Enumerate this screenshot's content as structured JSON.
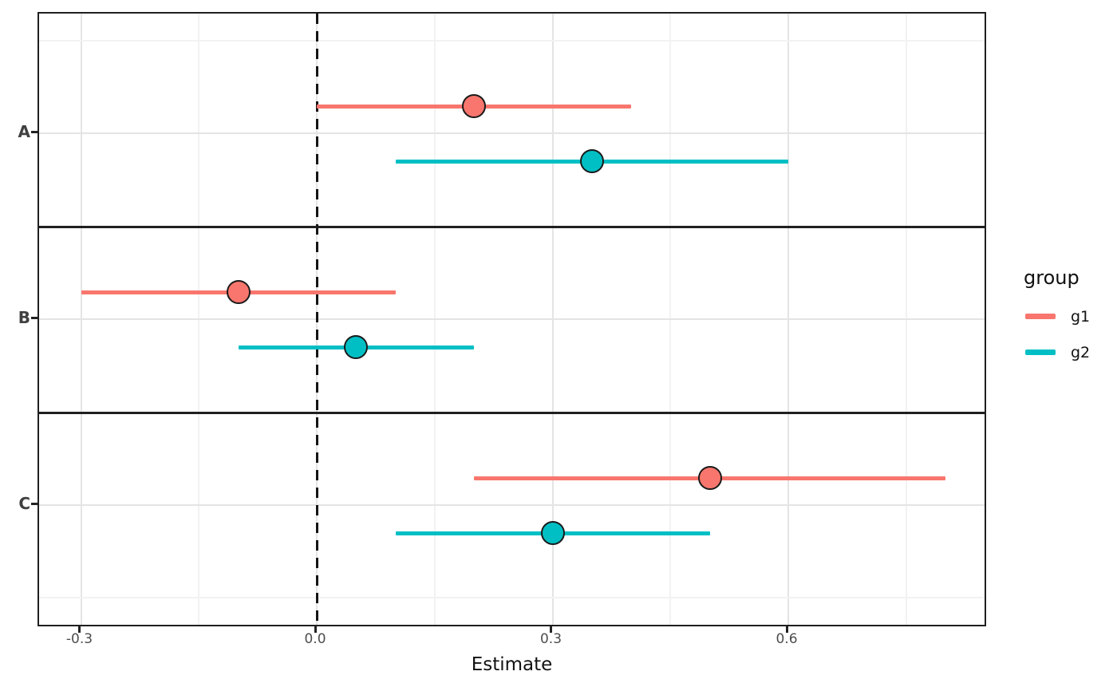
{
  "chart_data": {
    "type": "pointrange_forest",
    "title": "",
    "xlabel": "Estimate",
    "x_ticks": [
      -0.3,
      0.0,
      0.3,
      0.6
    ],
    "x_tick_labels": [
      "-0.3",
      "0.0",
      "0.3",
      "0.6"
    ],
    "x_minor_ticks": [
      -0.15,
      0.15,
      0.45,
      0.75
    ],
    "xlim": [
      -0.353,
      0.854
    ],
    "grid": "on",
    "facets": [
      "A",
      "B",
      "C"
    ],
    "reference_line": {
      "x": 0.0,
      "style": "dashed",
      "color": "#141414"
    },
    "legend": {
      "title": "group",
      "position": "right",
      "entries": [
        {
          "label": "g1",
          "color": "#F8766D"
        },
        {
          "label": "g2",
          "color": "#00BFC4"
        }
      ]
    },
    "series": [
      {
        "name": "g1",
        "color": "#F8766D",
        "points": [
          {
            "facet": "A",
            "estimate": 0.2,
            "lower": 0.0,
            "upper": 0.4
          },
          {
            "facet": "B",
            "estimate": -0.1,
            "lower": -0.3,
            "upper": 0.1
          },
          {
            "facet": "C",
            "estimate": 0.5,
            "lower": 0.2,
            "upper": 0.8
          }
        ]
      },
      {
        "name": "g2",
        "color": "#00BFC4",
        "points": [
          {
            "facet": "A",
            "estimate": 0.35,
            "lower": 0.1,
            "upper": 0.6
          },
          {
            "facet": "B",
            "estimate": 0.05,
            "lower": -0.1,
            "upper": 0.2
          },
          {
            "facet": "C",
            "estimate": 0.3,
            "lower": 0.1,
            "upper": 0.5
          }
        ]
      }
    ],
    "colors": {
      "g1": "#F8766D",
      "g2": "#00BFC4",
      "panel_border": "#1f1f1f",
      "grid_major": "#e4e4e4",
      "grid_minor": "#f2f2f2",
      "tick_label": "#4d4d4d",
      "facet_label": "#404040"
    }
  }
}
